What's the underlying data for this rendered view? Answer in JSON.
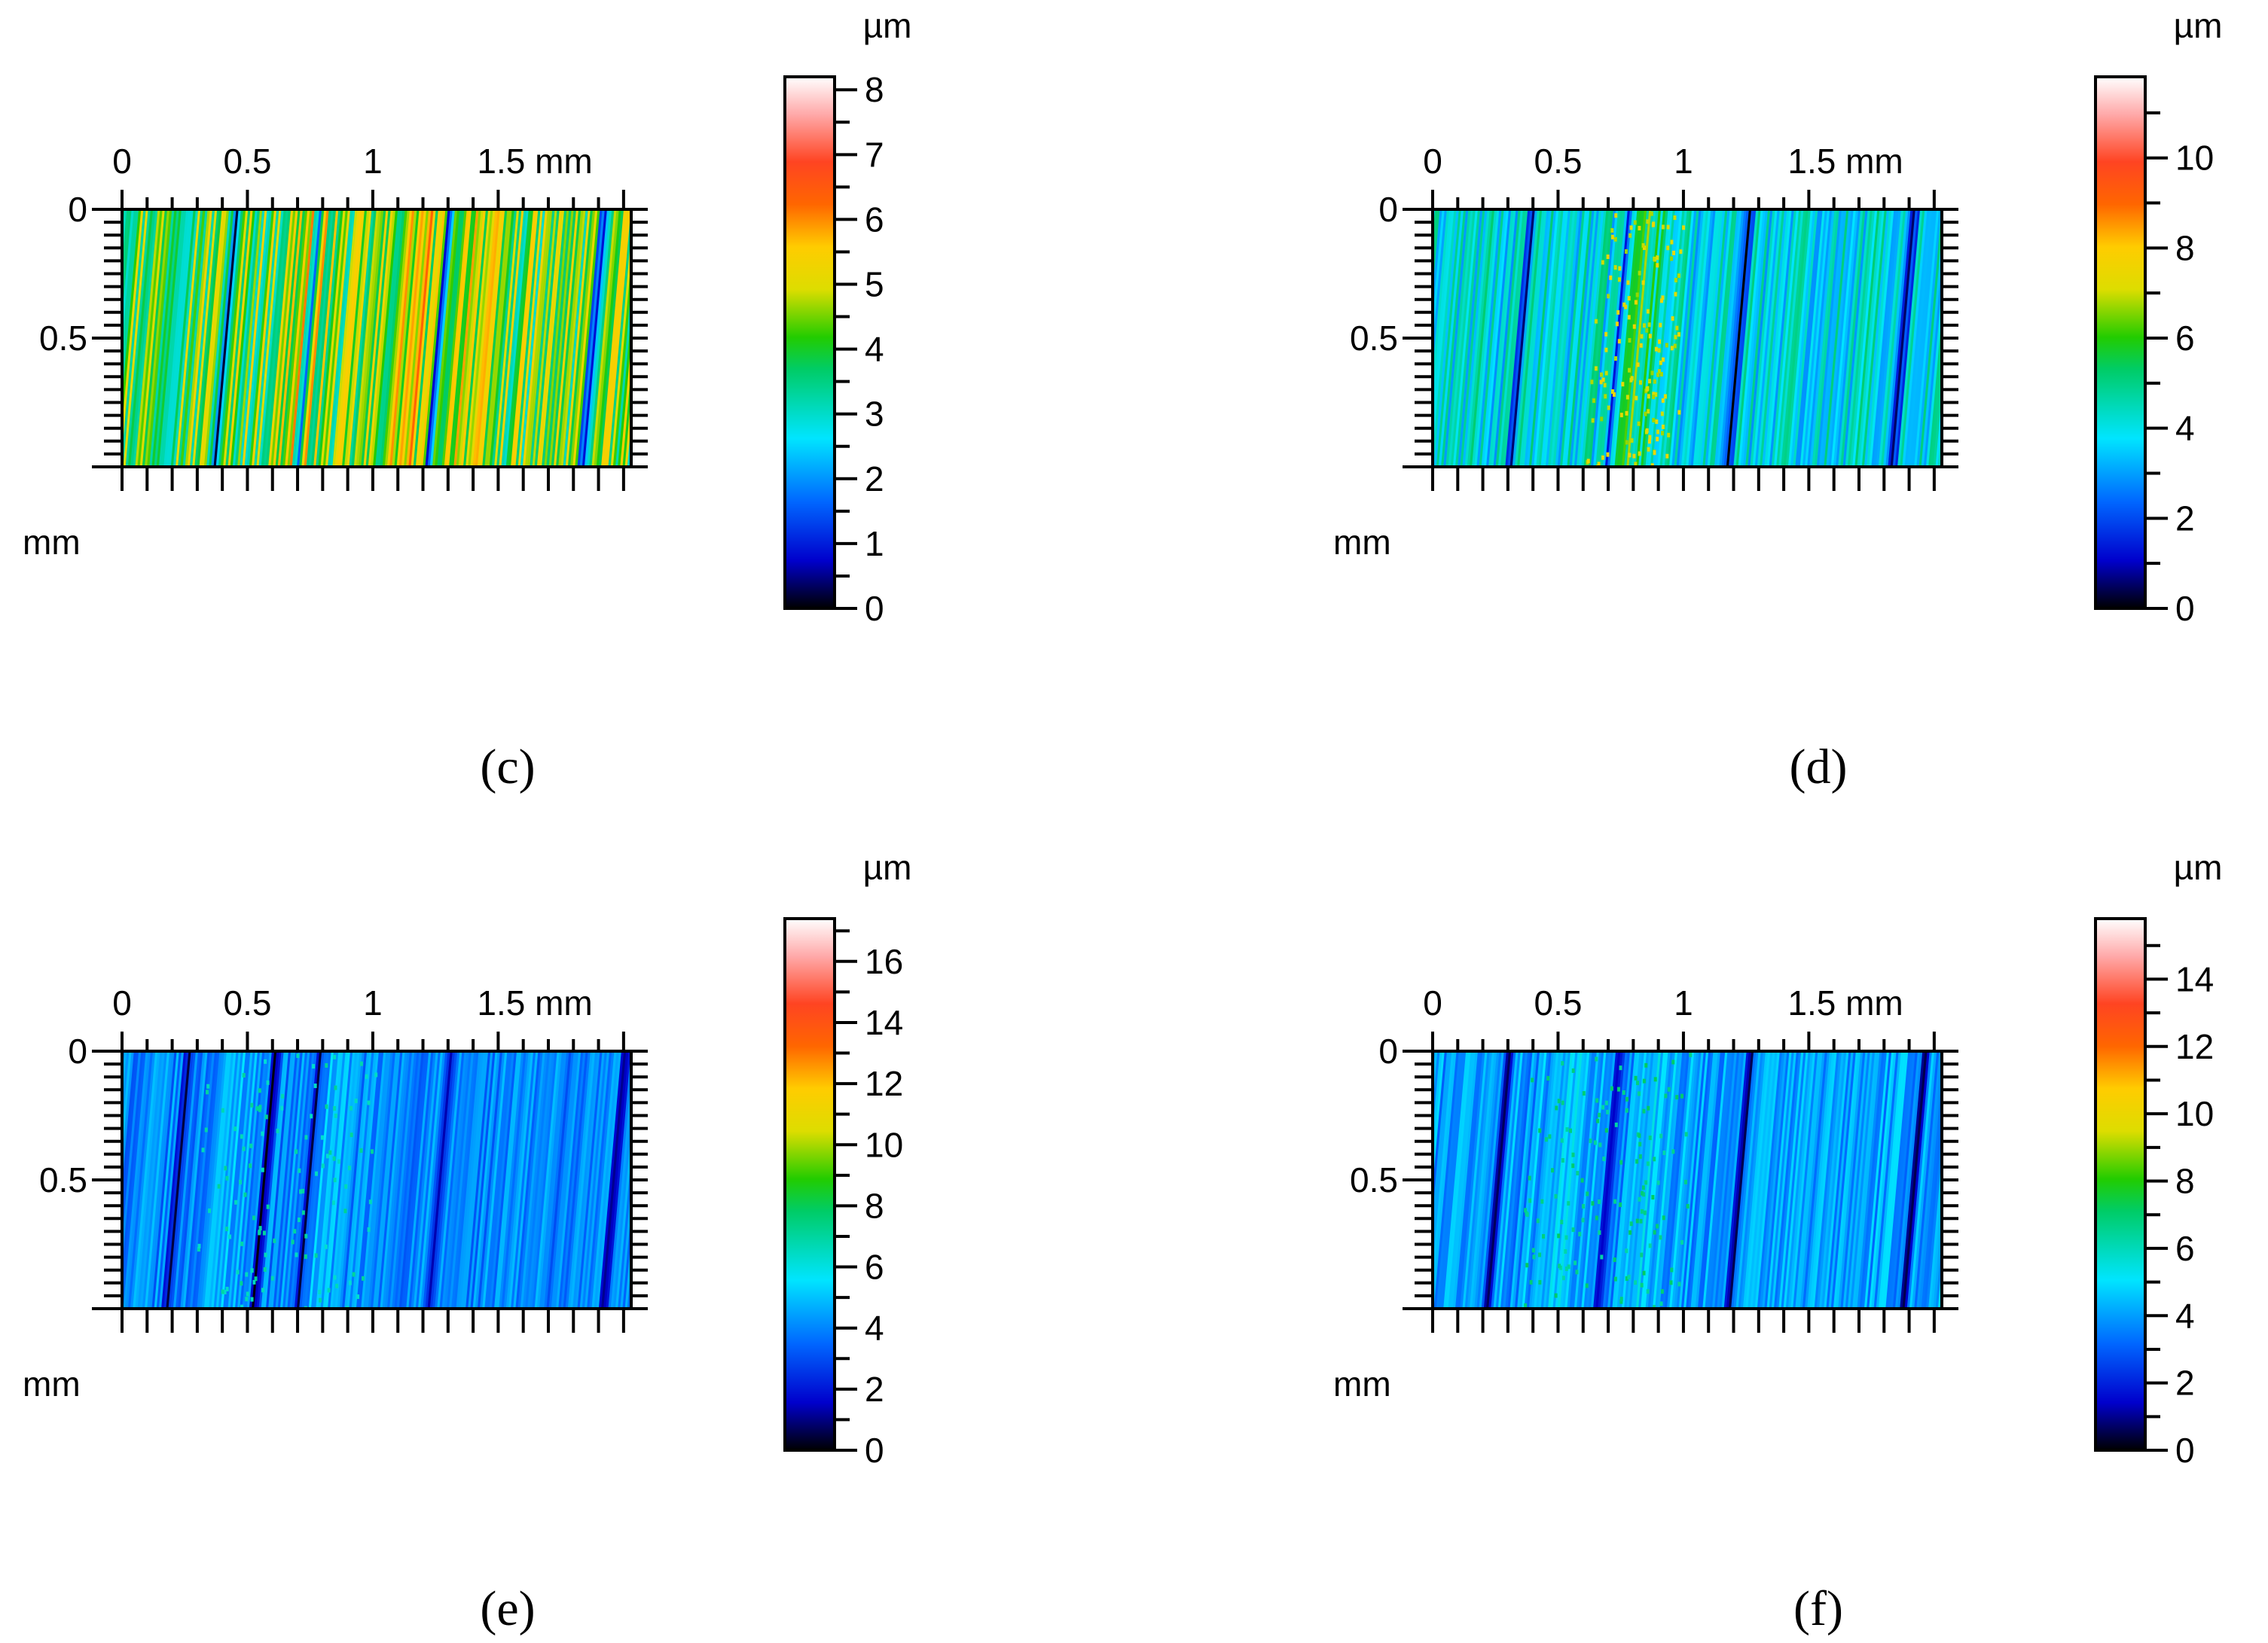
{
  "figure": {
    "panels": [
      {
        "id": "c",
        "caption": "(c)",
        "colorbar": {
          "unit": "µm",
          "vmin": 0,
          "vmax": 8.2,
          "ticks": [
            0,
            1,
            2,
            3,
            4,
            5,
            6,
            7,
            8
          ],
          "minor_step": 0.5
        },
        "surface": {
          "base": 4.2,
          "amp": 1.3,
          "n_stripes": 230,
          "dark_lines": [
            0.21,
            0.36,
            0.6,
            0.88
          ],
          "bright_bands": [
            0.35,
            0.55,
            0.65
          ],
          "speckle": 0.0
        }
      },
      {
        "id": "d",
        "caption": "(d)",
        "colorbar": {
          "unit": "µm",
          "vmin": 0,
          "vmax": 11.8,
          "ticks": [
            0,
            2,
            4,
            6,
            8,
            10
          ],
          "minor_step": 1
        },
        "surface": {
          "base": 4.0,
          "amp": 1.2,
          "n_stripes": 230,
          "dark_lines": [
            0.18,
            0.36,
            0.58,
            0.88
          ],
          "bright_bands": [
            0.38,
            0.4
          ],
          "speckle": 0.05
        }
      },
      {
        "id": "e",
        "caption": "(e)",
        "colorbar": {
          "unit": "µm",
          "vmin": 0,
          "vmax": 17.4,
          "ticks": [
            0,
            2,
            4,
            6,
            8,
            10,
            12,
            14,
            16
          ],
          "minor_step": 1
        },
        "surface": {
          "base": 4.0,
          "amp": 1.0,
          "n_stripes": 230,
          "dark_lines": [
            0.12,
            0.28,
            0.36,
            0.6,
            0.92
          ],
          "bright_bands": [
            0.22,
            0.4
          ],
          "speckle": 0.04
        }
      },
      {
        "id": "f",
        "caption": "(f)",
        "colorbar": {
          "unit": "µm",
          "vmin": 0,
          "vmax": 15.8,
          "ticks": [
            0,
            2,
            4,
            6,
            8,
            10,
            12,
            14
          ],
          "minor_step": 1
        },
        "surface": {
          "base": 4.0,
          "amp": 1.0,
          "n_stripes": 230,
          "dark_lines": [
            0.14,
            0.34,
            0.58,
            0.9
          ],
          "bright_bands": [
            0.25,
            0.42
          ],
          "speckle": 0.05
        }
      }
    ],
    "x_axis": {
      "unit": "mm",
      "tick_labels": [
        "0",
        "0.5",
        "1",
        "1.5 mm"
      ],
      "tick_values": [
        0,
        0.5,
        1,
        1.5
      ],
      "range": [
        0,
        2.0
      ],
      "minor_step": 0.1
    },
    "y_axis": {
      "unit": "mm",
      "tick_labels": [
        "0",
        "0.5"
      ],
      "tick_values": [
        0,
        0.5
      ],
      "range": [
        0,
        1.0
      ],
      "minor_step": 0.05,
      "label": "mm"
    }
  },
  "chart_data": [
    {
      "type": "heatmap",
      "title": "(c)",
      "xlabel": "mm",
      "ylabel": "mm",
      "xlim": [
        0,
        2.0
      ],
      "ylim": [
        0,
        1.0
      ],
      "colorbar_label": "µm",
      "colorbar_range": [
        0,
        8.2
      ]
    },
    {
      "type": "heatmap",
      "title": "(d)",
      "xlabel": "mm",
      "ylabel": "mm",
      "xlim": [
        0,
        2.0
      ],
      "ylim": [
        0,
        1.0
      ],
      "colorbar_label": "µm",
      "colorbar_range": [
        0,
        11.8
      ]
    },
    {
      "type": "heatmap",
      "title": "(e)",
      "xlabel": "mm",
      "ylabel": "mm",
      "xlim": [
        0,
        2.0
      ],
      "ylim": [
        0,
        1.0
      ],
      "colorbar_label": "µm",
      "colorbar_range": [
        0,
        17.4
      ]
    },
    {
      "type": "heatmap",
      "title": "(f)",
      "xlabel": "mm",
      "ylabel": "mm",
      "xlim": [
        0,
        2.0
      ],
      "ylim": [
        0,
        1.0
      ],
      "colorbar_label": "µm",
      "colorbar_range": [
        0,
        15.8
      ]
    }
  ],
  "colormap": {
    "stops": [
      [
        0.0,
        "#000000"
      ],
      [
        0.09,
        "#0000cc"
      ],
      [
        0.2,
        "#0066ff"
      ],
      [
        0.32,
        "#00e5ff"
      ],
      [
        0.45,
        "#00cc66"
      ],
      [
        0.51,
        "#22cc00"
      ],
      [
        0.6,
        "#dddd00"
      ],
      [
        0.68,
        "#ffcc00"
      ],
      [
        0.76,
        "#ff6600"
      ],
      [
        0.84,
        "#ff4422"
      ],
      [
        0.93,
        "#ffaaaa"
      ],
      [
        1.0,
        "#ffffff"
      ]
    ]
  }
}
